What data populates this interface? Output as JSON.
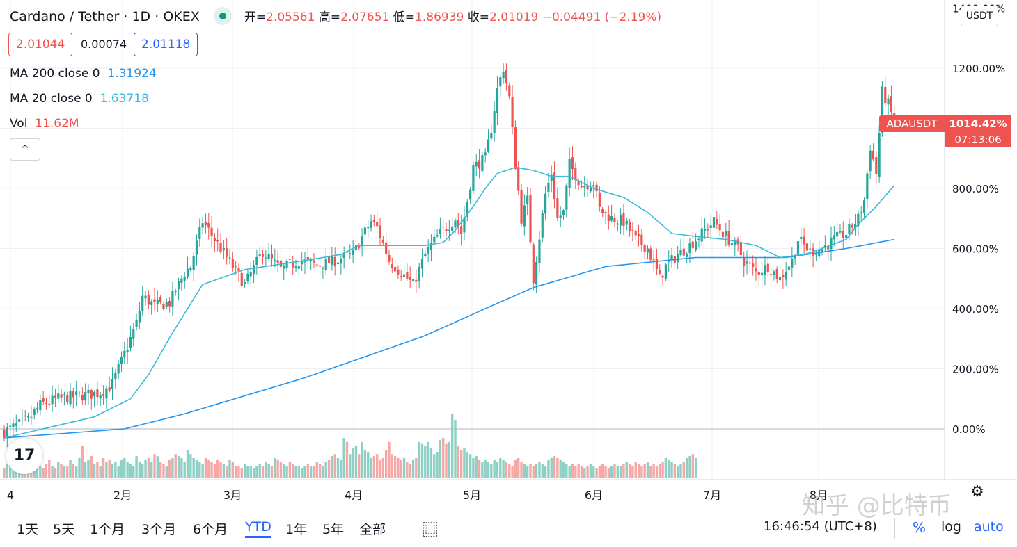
{
  "header": {
    "symbol": "Cardano / Tether",
    "interval": "1D",
    "exchange": "OKEX",
    "sep": "·",
    "slash": "/",
    "open_label": "开=",
    "open": "2.05561",
    "high_label": "高=",
    "high": "2.07651",
    "low_label": "低=",
    "low": "1.86939",
    "close_label": "收=",
    "close": "2.01019",
    "change": "−0.04491 (−2.19%)"
  },
  "quote": {
    "bid": "2.01044",
    "spread": "0.00074",
    "ask": "2.01118"
  },
  "indicators": {
    "ma200_label": "MA 200 close 0",
    "ma200_value": "1.31924",
    "ma20_label": "MA 20 close 0",
    "ma20_value": "1.63718",
    "vol_label": "Vol",
    "vol_value": "11.62M"
  },
  "collapse_icon": "chevron-up-icon",
  "collapse_glyph": "^",
  "scale_currency": "USDT",
  "price_tag": {
    "symbol": "ADAUSDT",
    "value": "1014.42%",
    "countdown": "07:13:06"
  },
  "logo_text": "17",
  "toolbar": {
    "ranges": [
      "1天",
      "5天",
      "1个月",
      "3个月",
      "6个月",
      "YTD",
      "1年",
      "5年",
      "全部"
    ],
    "active": "YTD",
    "compare_icon": "calendar-range-icon",
    "compare_glyph": "⿴",
    "time": "16:46:54 (UTC+8)",
    "percent": "%",
    "log": "log",
    "auto": "auto"
  },
  "watermark": "知乎 @比特币",
  "settings_icon": "gear-icon",
  "settings_glyph": "⚙",
  "colors": {
    "up": "#26a69a",
    "down": "#ef5350",
    "ma20": "#38bcd8",
    "ma200": "#2196f3",
    "grid": "#eef0f3"
  },
  "chart_data": {
    "type": "candlestick",
    "y_unit": "%",
    "y_ticks": [
      "1400.00%",
      "1200.00%",
      "800.00%",
      "600.00%",
      "400.00%",
      "200.00%",
      "0.00%"
    ],
    "x_ticks": [
      "4",
      "2月",
      "3月",
      "4月",
      "5月",
      "6月",
      "7月",
      "8月"
    ],
    "ylim": [
      -170,
      1400
    ],
    "anchors_pct": [
      [
        0,
        -10
      ],
      [
        8,
        30
      ],
      [
        12,
        80
      ],
      [
        18,
        100
      ],
      [
        25,
        110
      ],
      [
        32,
        120
      ],
      [
        36,
        150
      ],
      [
        40,
        250
      ],
      [
        44,
        350
      ],
      [
        46,
        440
      ],
      [
        50,
        410
      ],
      [
        55,
        420
      ],
      [
        60,
        520
      ],
      [
        62,
        540
      ],
      [
        66,
        690
      ],
      [
        70,
        630
      ],
      [
        76,
        540
      ],
      [
        80,
        480
      ],
      [
        86,
        590
      ],
      [
        92,
        530
      ],
      [
        98,
        560
      ],
      [
        104,
        545
      ],
      [
        110,
        560
      ],
      [
        116,
        580
      ],
      [
        118,
        620
      ],
      [
        122,
        690
      ],
      [
        124,
        670
      ],
      [
        128,
        560
      ],
      [
        132,
        520
      ],
      [
        136,
        480
      ],
      [
        140,
        580
      ],
      [
        144,
        640
      ],
      [
        146,
        660
      ],
      [
        150,
        700
      ],
      [
        152,
        650
      ],
      [
        156,
        870
      ],
      [
        160,
        900
      ],
      [
        162,
        1000
      ],
      [
        164,
        1130
      ],
      [
        166,
        1200
      ],
      [
        168,
        1100
      ],
      [
        170,
        880
      ],
      [
        172,
        700
      ],
      [
        174,
        760
      ],
      [
        176,
        500
      ],
      [
        180,
        780
      ],
      [
        182,
        850
      ],
      [
        184,
        700
      ],
      [
        186,
        720
      ],
      [
        188,
        880
      ],
      [
        192,
        810
      ],
      [
        196,
        820
      ],
      [
        198,
        730
      ],
      [
        202,
        700
      ],
      [
        206,
        690
      ],
      [
        210,
        630
      ],
      [
        214,
        600
      ],
      [
        218,
        500
      ],
      [
        220,
        540
      ],
      [
        224,
        580
      ],
      [
        228,
        610
      ],
      [
        232,
        650
      ],
      [
        236,
        690
      ],
      [
        240,
        640
      ],
      [
        244,
        600
      ],
      [
        246,
        560
      ],
      [
        250,
        520
      ],
      [
        254,
        540
      ],
      [
        258,
        500
      ],
      [
        262,
        560
      ],
      [
        264,
        630
      ],
      [
        268,
        590
      ],
      [
        272,
        600
      ],
      [
        276,
        630
      ],
      [
        280,
        650
      ],
      [
        284,
        700
      ],
      [
        286,
        760
      ],
      [
        288,
        940
      ],
      [
        290,
        850
      ],
      [
        292,
        1120
      ],
      [
        294,
        1080
      ],
      [
        296,
        1020
      ]
    ],
    "ma20_pct": [
      [
        0,
        -30
      ],
      [
        30,
        40
      ],
      [
        42,
        100
      ],
      [
        48,
        180
      ],
      [
        56,
        320
      ],
      [
        66,
        480
      ],
      [
        80,
        530
      ],
      [
        100,
        560
      ],
      [
        112,
        580
      ],
      [
        118,
        610
      ],
      [
        130,
        610
      ],
      [
        140,
        610
      ],
      [
        146,
        620
      ],
      [
        150,
        660
      ],
      [
        156,
        740
      ],
      [
        160,
        800
      ],
      [
        164,
        850
      ],
      [
        170,
        870
      ],
      [
        176,
        860
      ],
      [
        182,
        840
      ],
      [
        188,
        840
      ],
      [
        196,
        800
      ],
      [
        206,
        770
      ],
      [
        214,
        720
      ],
      [
        222,
        650
      ],
      [
        230,
        640
      ],
      [
        240,
        630
      ],
      [
        250,
        610
      ],
      [
        258,
        570
      ],
      [
        266,
        580
      ],
      [
        272,
        600
      ],
      [
        280,
        630
      ],
      [
        284,
        680
      ],
      [
        290,
        740
      ],
      [
        296,
        810
      ]
    ],
    "ma200_pct": [
      [
        0,
        -30
      ],
      [
        40,
        0
      ],
      [
        60,
        50
      ],
      [
        80,
        110
      ],
      [
        100,
        170
      ],
      [
        120,
        240
      ],
      [
        140,
        310
      ],
      [
        160,
        400
      ],
      [
        176,
        470
      ],
      [
        200,
        540
      ],
      [
        230,
        570
      ],
      [
        260,
        570
      ],
      [
        280,
        600
      ],
      [
        296,
        630
      ]
    ],
    "volume_relative": [
      0.25,
      0.35,
      0.3,
      0.5,
      0.6,
      0.45,
      0.4,
      0.3,
      0.55,
      0.35,
      0.3,
      0.4,
      0.3,
      0.25,
      0.35,
      0.45,
      0.3,
      0.25,
      0.4,
      0.35,
      0.3,
      0.3,
      0.45,
      0.35,
      0.3,
      0.5,
      0.8,
      0.4,
      0.45,
      0.55,
      0.35,
      0.4,
      0.3,
      0.5,
      0.4,
      0.45,
      0.35,
      0.4,
      0.3,
      0.45,
      0.5,
      0.4,
      0.35,
      0.3,
      0.55,
      0.4,
      0.35,
      0.45,
      0.5,
      0.4,
      0.6,
      0.55,
      0.4,
      0.35,
      0.3,
      0.45,
      0.5,
      0.6,
      0.55,
      0.5,
      0.4,
      0.7,
      0.6,
      0.5,
      0.45,
      0.4,
      0.35,
      0.5,
      0.45,
      0.4,
      0.35,
      0.45,
      0.4,
      0.35,
      0.3,
      0.45,
      0.4,
      0.3,
      0.3,
      0.25,
      0.35,
      0.3,
      0.3,
      0.25,
      0.3,
      0.35,
      0.3,
      0.4,
      0.35,
      0.3,
      0.5,
      0.45,
      0.4,
      0.35,
      0.3,
      0.4,
      0.35,
      0.3,
      0.3,
      0.25,
      0.3,
      0.35,
      0.3,
      0.3,
      0.4,
      0.35,
      0.3,
      0.4,
      0.45,
      0.55,
      0.6,
      0.5,
      0.45,
      1.0,
      0.9,
      0.6,
      0.75,
      0.8,
      0.6,
      0.9,
      0.7,
      0.65,
      0.5,
      0.55,
      0.6,
      0.45,
      0.5,
      0.7,
      0.9,
      0.6,
      0.55,
      0.5,
      0.45,
      0.5,
      0.4,
      0.35,
      0.45,
      0.5,
      0.9,
      0.85,
      0.8,
      0.9,
      0.75,
      0.6,
      0.65,
      0.95,
      1.0,
      0.85,
      0.9,
      1.6,
      1.45,
      0.8,
      0.7,
      0.75,
      0.65,
      0.6,
      0.5,
      0.55,
      0.45,
      0.4,
      0.45,
      0.4,
      0.35,
      0.45,
      0.4,
      0.5,
      0.45,
      0.4,
      0.35,
      0.3,
      0.45,
      0.5,
      0.4,
      0.35,
      0.3,
      0.35,
      0.3,
      0.35,
      0.4,
      0.35,
      0.3,
      0.45,
      0.5,
      0.55,
      0.5,
      0.45,
      0.4,
      0.35,
      0.3,
      0.35,
      0.3,
      0.35,
      0.3,
      0.25,
      0.3,
      0.35,
      0.3,
      0.25,
      0.3,
      0.35,
      0.3,
      0.25,
      0.3,
      0.35,
      0.3,
      0.3,
      0.35,
      0.4,
      0.35,
      0.3,
      0.4,
      0.35,
      0.3,
      0.35,
      0.4,
      0.3,
      0.35,
      0.3,
      0.35,
      0.4,
      0.5,
      0.45,
      0.4,
      0.35,
      0.3,
      0.35,
      0.4,
      0.5,
      0.55,
      0.6,
      0.5
    ]
  }
}
